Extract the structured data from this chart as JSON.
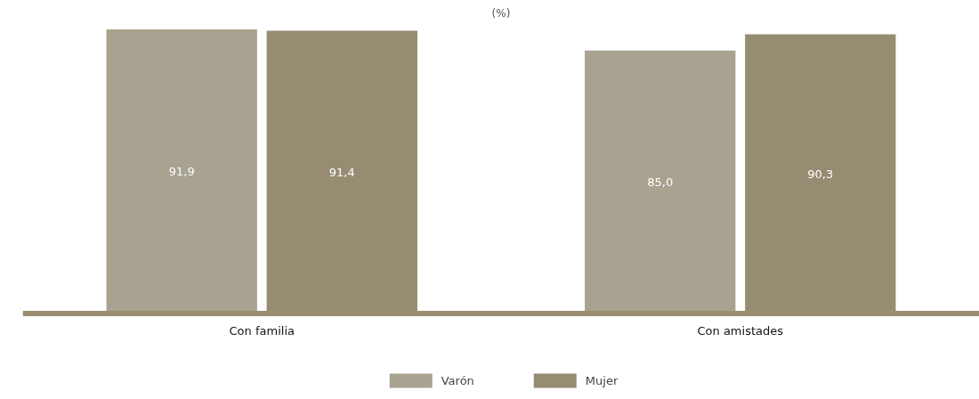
{
  "chart_data": {
    "type": "bar",
    "title": "(%)",
    "categories": [
      "Con familia",
      "Con amistades"
    ],
    "series": [
      {
        "name": "Varón",
        "color": "#a8a290",
        "values": [
          91.9,
          85.0
        ],
        "value_labels": [
          "91,9",
          "85,0"
        ]
      },
      {
        "name": "Mujer",
        "color": "#968c72",
        "values": [
          91.4,
          90.3
        ],
        "value_labels": [
          "91,4",
          "90,3"
        ]
      }
    ],
    "legend": "bottom",
    "grid": false,
    "tick_labels": "x"
  }
}
